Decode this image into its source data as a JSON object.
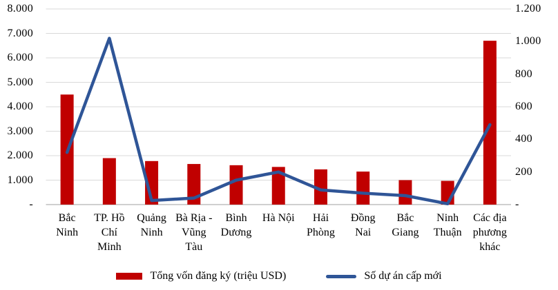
{
  "legend": {
    "bar_label": "Tổng vốn đăng ký (triệu  USD)",
    "line_label": "Số dự án cấp mới"
  },
  "colors": {
    "bar": "#c00000",
    "line": "#2f5597",
    "gridline": "#d9d9d9",
    "axis_line": "#bfbfbf",
    "text": "#000000"
  },
  "left_axis": {
    "tick_labels": [
      "8.000",
      "7.000",
      "6.000",
      "5.000",
      "4.000",
      "3.000",
      "2.000",
      "1.000",
      "-"
    ],
    "min": 0,
    "max": 8000
  },
  "right_axis": {
    "tick_labels": [
      "1.200",
      "1.000",
      "800",
      "600",
      "400",
      "200",
      "-"
    ],
    "min": 0,
    "max": 1200
  },
  "chart_data": {
    "type": "combo-bar-line",
    "categories": [
      "Bắc Ninh",
      "TP. Hồ Chí Minh",
      "Quảng Ninh",
      "Bà Rịa - Vũng Tàu",
      "Bình Dương",
      "Hà Nội",
      "Hải Phòng",
      "Đồng Nai",
      "Bắc Giang",
      "Ninh Thuận",
      "Các địa phương khác"
    ],
    "series": [
      {
        "name": "Tổng vốn đăng ký (triệu USD)",
        "type": "bar",
        "axis": "left",
        "values": [
          4500,
          1900,
          1780,
          1660,
          1610,
          1540,
          1440,
          1350,
          1000,
          970,
          6700
        ]
      },
      {
        "name": "Số dự án cấp mới",
        "type": "line",
        "axis": "right",
        "values": [
          320,
          1020,
          25,
          40,
          150,
          200,
          90,
          70,
          55,
          5,
          490
        ]
      }
    ],
    "left_ylim": [
      0,
      8000
    ],
    "right_ylim": [
      0,
      1200
    ],
    "grid": true,
    "legend_position": "bottom",
    "title": ""
  }
}
